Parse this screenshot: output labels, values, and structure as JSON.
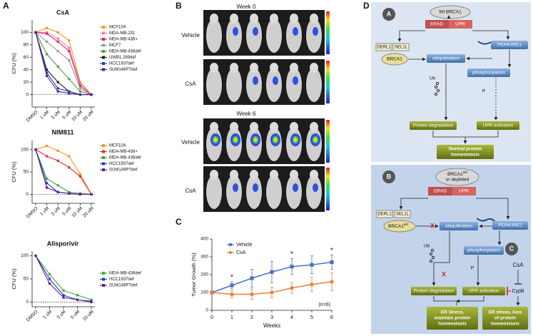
{
  "panels": [
    "A",
    "B",
    "C",
    "D"
  ],
  "chart_data": [
    {
      "type": "line",
      "title": "CsA",
      "y_label": "CFU (%)",
      "categories": [
        "DMSO",
        "1 uM",
        "3 uM",
        "5 uM",
        "10 uM",
        "20 uM"
      ],
      "ylim": [
        -20,
        120
      ],
      "yticks": [
        0,
        20,
        40,
        60,
        80,
        100
      ],
      "reference_line": 0,
      "series": [
        {
          "name": "MCF10A",
          "color": "#f7941d",
          "values": [
            100,
            107,
            100,
            87,
            20,
            0
          ]
        },
        {
          "name": "MDA-MB-231",
          "color": "#ee7fb0",
          "values": [
            100,
            100,
            90,
            75,
            18,
            0
          ]
        },
        {
          "name": "MDA-MB-436+",
          "color": "#d6246e",
          "values": [
            100,
            98,
            85,
            70,
            14,
            0
          ]
        },
        {
          "name": "MCF7",
          "color": "#999999",
          "values": [
            100,
            85,
            70,
            55,
            10,
            0
          ]
        },
        {
          "name": "MDA-MB-436def",
          "color": "#4aa03f",
          "values": [
            100,
            65,
            45,
            25,
            5,
            0
          ]
        },
        {
          "name": "UWB1.289def",
          "color": "#222222",
          "values": [
            100,
            40,
            20,
            5,
            0,
            0
          ]
        },
        {
          "name": "HCC1937def",
          "color": "#1f3fbf",
          "values": [
            100,
            35,
            10,
            5,
            0,
            0
          ]
        },
        {
          "name": "SUM149PTdef",
          "color": "#5b1f8f",
          "values": [
            100,
            30,
            5,
            2,
            0,
            0
          ]
        }
      ]
    },
    {
      "type": "line",
      "title": "NIM811",
      "y_label": "CFU (%)",
      "categories": [
        "DMSO",
        "1 uM",
        "3 uM",
        "5 uM",
        "10 uM",
        "20 uM"
      ],
      "ylim": [
        -20,
        120
      ],
      "yticks": [
        0,
        50,
        100
      ],
      "reference_line": 0,
      "series": [
        {
          "name": "MCF10A",
          "color": "#f7941d",
          "values": [
            100,
            108,
            97,
            85,
            45,
            0
          ]
        },
        {
          "name": "MDA-MB-436+",
          "color": "#e0302c",
          "values": [
            100,
            85,
            75,
            60,
            40,
            0
          ]
        },
        {
          "name": "MDA-MB-436def",
          "color": "#4aa03f",
          "values": [
            100,
            35,
            20,
            5,
            2,
            0
          ]
        },
        {
          "name": "HCC1937def",
          "color": "#1f3fbf",
          "values": [
            100,
            25,
            5,
            2,
            0,
            0
          ]
        },
        {
          "name": "SUM149PTdef",
          "color": "#5b1f8f",
          "values": [
            100,
            15,
            5,
            2,
            0,
            0
          ]
        }
      ]
    },
    {
      "type": "line",
      "title": "Alisporivir",
      "y_label": "CFU (%)",
      "categories": [
        "DMSO",
        "1 uM",
        "3 uM",
        "5 uM",
        "10 uM"
      ],
      "ylim": [
        -10,
        110
      ],
      "yticks": [
        0,
        50,
        100
      ],
      "reference_line": 0,
      "series": [
        {
          "name": "MDA-MB-436def",
          "color": "#4aa03f",
          "values": [
            100,
            60,
            25,
            15,
            5
          ]
        },
        {
          "name": "HCC1937def",
          "color": "#1f3fbf",
          "values": [
            100,
            50,
            15,
            5,
            2
          ]
        },
        {
          "name": "SUM149PTdef",
          "color": "#5b1f8f",
          "values": [
            100,
            40,
            10,
            5,
            0
          ]
        }
      ]
    },
    {
      "type": "line",
      "y_label": "Tumor Growth (%)",
      "x_label": "Weeks",
      "x": [
        0,
        1,
        2,
        3,
        4,
        5,
        6
      ],
      "xlim": [
        0,
        6
      ],
      "xticks": [
        0,
        1,
        2,
        3,
        4,
        5,
        6
      ],
      "ylim": [
        0,
        400
      ],
      "yticks": [
        0,
        100,
        200,
        300,
        400
      ],
      "annotations": [
        {
          "text": "*",
          "x": 1
        },
        {
          "text": "*",
          "x": 4
        },
        {
          "text": "*",
          "x": 6
        }
      ],
      "note": "(n=6)",
      "series": [
        {
          "name": "Vehicle",
          "color": "#4a72c4",
          "marker": "square",
          "values": [
            100,
            140,
            180,
            215,
            245,
            255,
            270
          ],
          "errors": [
            0,
            20,
            50,
            60,
            45,
            50,
            40
          ]
        },
        {
          "name": "CsA",
          "color": "#e8803a",
          "marker": "circle",
          "values": [
            100,
            90,
            90,
            100,
            125,
            145,
            160
          ],
          "errors": [
            0,
            20,
            30,
            30,
            30,
            40,
            50
          ]
        }
      ]
    }
  ],
  "imaging": {
    "week0": "Week 0",
    "week6": "Week 6",
    "rows": [
      "Vehicle",
      "CsA",
      "Vehicle",
      "CsA"
    ]
  },
  "diagram": {
    "panel_a": {
      "badge": "A",
      "top": "Wt BRCA1",
      "erad": "ERAD",
      "upr": "UPR",
      "derl1": "DERL1",
      "sel1l": "SEL1L",
      "brca1": "BRCA1",
      "ubiquitination": "ubiquitination",
      "perk": "PERK/IRE1",
      "phosphorylation": "phosphorylation",
      "ub": "Ub",
      "p": "P",
      "degradation": "Protein  degradation",
      "activation": "UPR  activation",
      "outcome": [
        "Normal protein",
        "homeostasis"
      ]
    },
    "panel_b": {
      "badge": "B",
      "top": [
        "BRCA1",
        "def",
        "or depleted"
      ],
      "erad": "ERAD",
      "upr": "UPR",
      "derl1": "DERL1",
      "sel1l": "SEL1L",
      "brca1": [
        "BRCA1",
        "def"
      ],
      "x1": "X",
      "ubiquitination": "ubiquitination",
      "perk": "PERK/IRE1",
      "ub": "Ub",
      "x2": "X",
      "phosphorylation": "phosphorylation",
      "p": "P",
      "badge_c": "C",
      "csa": "CsA",
      "cypb": "CypB",
      "degradation": "Protein degradation",
      "activation": "UPR  activation",
      "outcome_1": [
        "ER  Stress,",
        "maintain protein",
        "homeostasis"
      ],
      "outcome_2": [
        "ER stress, loss",
        "of protein",
        "homeostasis"
      ]
    }
  }
}
